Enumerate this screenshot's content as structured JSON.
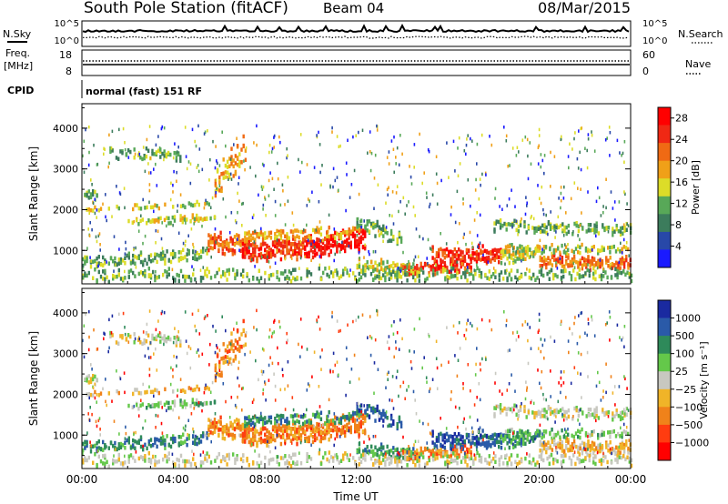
{
  "header": {
    "station": "South Pole Station (fitACF)",
    "beam": "Beam 04",
    "date": "08/Mar/2015"
  },
  "summary": {
    "nsky_label": "N.Sky",
    "nsearch_label": "N.Search",
    "left_ticks": [
      "10^5",
      "10^0"
    ],
    "right_ticks": [
      "10^5",
      "10^0"
    ],
    "freq_label_1": "Freq.",
    "freq_label_2": "[MHz]",
    "freq_ticks": [
      "18",
      "8"
    ],
    "nave_label": "Nave",
    "nave_ticks": [
      "60",
      "0"
    ],
    "cpid_label": "CPID",
    "cpid_value": "normal (fast) 151 RF"
  },
  "colors": {
    "power": [
      "#1a1aff",
      "#2848a8",
      "#3c7c5c",
      "#58a858",
      "#dcdc28",
      "#f0a018",
      "#f06a14",
      "#f02814",
      "#ff0000"
    ],
    "velocity": [
      "#ff0000",
      "#ff3c10",
      "#f0821a",
      "#f0b428",
      "#c8c8c0",
      "#64c84a",
      "#2e8a5a",
      "#2a5aa8",
      "#1a2aa0"
    ]
  },
  "chart_data": [
    {
      "type": "heatmap",
      "quantity": "power",
      "ylabel": "Slant Range [km]",
      "x_range": [
        "00:00",
        "24:00"
      ],
      "x_ticks": [
        "00:00",
        "04:00",
        "08:00",
        "12:00",
        "16:00",
        "20:00",
        "00:00"
      ],
      "ylim": [
        180,
        4600
      ],
      "y_ticks": [
        "1000",
        "2000",
        "3000",
        "4000"
      ],
      "colorbar_label": "Power [dB]",
      "colorbar_ticks": [
        "4",
        "8",
        "12",
        "16",
        "20",
        "24",
        "28"
      ],
      "colorbar_range": [
        0,
        30
      ]
    },
    {
      "type": "heatmap",
      "quantity": "velocity",
      "ylabel": "Slant Range [km]",
      "xlabel": "Time UT",
      "x_range": [
        "00:00",
        "24:00"
      ],
      "x_ticks": [
        "00:00",
        "04:00",
        "08:00",
        "12:00",
        "16:00",
        "20:00",
        "00:00"
      ],
      "ylim": [
        180,
        4600
      ],
      "y_ticks": [
        "1000",
        "2000",
        "3000",
        "4000"
      ],
      "colorbar_label": "Velocity [m s⁻¹]",
      "colorbar_ticks": [
        "1000",
        "500",
        "100",
        "25",
        "−25",
        "−100",
        "−500",
        "−1000"
      ]
    }
  ],
  "bands": [
    {
      "t0": 0.0,
      "t1": 5.6,
      "c0": 2000,
      "c1": 2150,
      "w": 60,
      "dens": 0.55,
      "p": 4,
      "v": 3
    },
    {
      "t0": 0.0,
      "t1": 0.7,
      "c0": 2450,
      "c1": 2300,
      "w": 120,
      "dens": 0.7,
      "p": 3,
      "v": 4
    },
    {
      "t0": 2.0,
      "t1": 5.8,
      "c0": 1700,
      "c1": 1800,
      "w": 100,
      "dens": 0.6,
      "p": 4,
      "v": 5
    },
    {
      "t0": 1.2,
      "t1": 4.3,
      "c0": 3400,
      "c1": 3300,
      "w": 150,
      "dens": 0.45,
      "p": 3,
      "v": 4
    },
    {
      "t0": 5.8,
      "t1": 7.2,
      "c0": 2600,
      "c1": 3600,
      "w": 400,
      "dens": 0.35,
      "p": 5,
      "v": 2
    },
    {
      "t0": 0.0,
      "t1": 5.5,
      "c0": 700,
      "c1": 900,
      "w": 150,
      "dens": 0.7,
      "p": 3,
      "v": 6
    },
    {
      "t0": 5.5,
      "t1": 7.2,
      "c0": 1200,
      "c1": 1100,
      "w": 260,
      "dens": 0.8,
      "p": 6,
      "v": 2
    },
    {
      "t0": 7.0,
      "t1": 9.8,
      "c0": 950,
      "c1": 1050,
      "w": 260,
      "dens": 0.95,
      "p": 7,
      "v": 2
    },
    {
      "t0": 9.8,
      "t1": 12.4,
      "c0": 1050,
      "c1": 1300,
      "w": 280,
      "dens": 0.9,
      "p": 8,
      "v": 2
    },
    {
      "t0": 7.0,
      "t1": 12.2,
      "c0": 1350,
      "c1": 1450,
      "w": 150,
      "dens": 0.6,
      "p": 5,
      "v": 6
    },
    {
      "t0": 12.0,
      "t1": 14.0,
      "c0": 1700,
      "c1": 1250,
      "w": 200,
      "dens": 0.6,
      "p": 3,
      "v": 7
    },
    {
      "t0": 12.0,
      "t1": 14.8,
      "c0": 650,
      "c1": 500,
      "w": 160,
      "dens": 0.7,
      "p": 4,
      "v": 6
    },
    {
      "t0": 14.0,
      "t1": 17.0,
      "c0": 500,
      "c1": 600,
      "w": 150,
      "dens": 0.8,
      "p": 7,
      "v": 2
    },
    {
      "t0": 15.3,
      "t1": 18.3,
      "c0": 850,
      "c1": 900,
      "w": 220,
      "dens": 0.85,
      "p": 7,
      "v": 7
    },
    {
      "t0": 18.3,
      "t1": 20.0,
      "c0": 850,
      "c1": 1000,
      "w": 200,
      "dens": 0.7,
      "p": 4,
      "v": 6
    },
    {
      "t0": 20.0,
      "t1": 24.0,
      "c0": 750,
      "c1": 650,
      "w": 180,
      "dens": 0.8,
      "p": 6,
      "v": 3
    },
    {
      "t0": 18.0,
      "t1": 24.0,
      "c0": 1600,
      "c1": 1500,
      "w": 150,
      "dens": 0.55,
      "p": 3,
      "v": 4
    },
    {
      "t0": 18.5,
      "t1": 24.0,
      "c0": 1050,
      "c1": 1000,
      "w": 110,
      "dens": 0.55,
      "p": 4,
      "v": 5
    },
    {
      "t0": 0.0,
      "t1": 24.0,
      "c0": 400,
      "c1": 400,
      "w": 170,
      "dens": 0.35,
      "p": 3,
      "v": 4
    }
  ]
}
